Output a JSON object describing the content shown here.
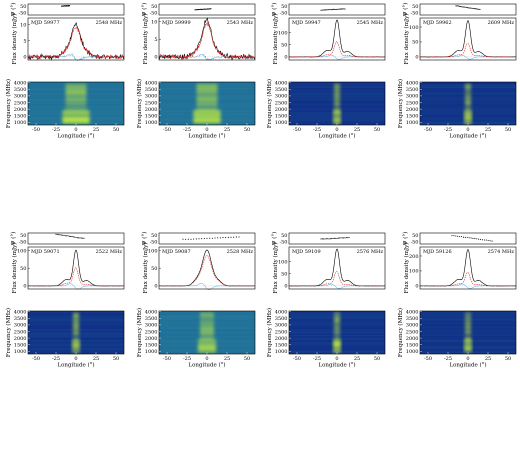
{
  "labels": {
    "pa_ylabel": "Ψ (°)",
    "flux_ylabel": "Flux density (mJy)",
    "freq_ylabel": "Frequency (MHz)",
    "xlabel": "Longitude (°)"
  },
  "colors": {
    "total_intensity": "#000000",
    "linear_pol": "#e0201b",
    "circular_pol": "#3aa0e6",
    "dynspec_bg_dark": "#0d2a86",
    "dynspec_bg_mid": "#1f6e98",
    "dynspec_signal": "#c8f03a"
  },
  "chart_data": [
    {
      "type": "line",
      "epoch": "MJD 59977",
      "freq": "2548 MHz",
      "pa_ticks": [
        50,
        -50
      ],
      "flux_ticks": [
        0,
        5,
        10
      ],
      "flux_max": 12,
      "peak": 10,
      "pl": 0.92,
      "pv": 0.12,
      "wide": 1,
      "noisy": true,
      "pa_x": [
        -18,
        -8
      ],
      "pa_y": [
        55,
        62
      ]
    },
    {
      "type": "line",
      "epoch": "MJD 59999",
      "freq": "2543 MHz",
      "pa_ticks": [
        50,
        -50
      ],
      "flux_ticks": [
        0,
        5,
        10
      ],
      "flux_max": 11,
      "peak": 10.2,
      "pl": 0.9,
      "pv": 0.1,
      "wide": 1,
      "noisy": true,
      "pa_x": [
        -15,
        5
      ],
      "pa_y": [
        -5,
        10
      ]
    },
    {
      "type": "line",
      "epoch": "MJD 59947",
      "freq": "2545 MHz",
      "pa_ticks": [
        50,
        -50
      ],
      "flux_ticks": [
        0,
        50,
        100
      ],
      "flux_max": 160,
      "peak": 150,
      "pl": 0.45,
      "pv": 0.08,
      "wide": 0,
      "noisy": false,
      "pa_x": [
        -20,
        10
      ],
      "pa_y": [
        -10,
        10
      ]
    },
    {
      "type": "line",
      "epoch": "MJD 59962",
      "freq": "2609 MHz",
      "pa_ticks": [
        50,
        -50
      ],
      "flux_ticks": [
        0,
        50,
        100
      ],
      "flux_max": 130,
      "peak": 120,
      "pl": 0.4,
      "pv": 0.07,
      "wide": 0,
      "noisy": false,
      "pa_x": [
        -15,
        15
      ],
      "pa_y": [
        60,
        0
      ]
    },
    {
      "type": "line",
      "epoch": "MJD 59071",
      "freq": "2522 MHz",
      "pa_ticks": [
        50,
        -50
      ],
      "flux_ticks": [
        0,
        50,
        100
      ],
      "flux_max": 110,
      "peak": 100,
      "pl": 0.55,
      "pv": 0.1,
      "wide": 0,
      "noisy": false,
      "pa_x": [
        -25,
        10
      ],
      "pa_y": [
        70,
        0
      ]
    },
    {
      "type": "line",
      "epoch": "MJD 59087",
      "freq": "2528 MHz",
      "pa_ticks": [
        50,
        -50
      ],
      "flux_ticks": [
        0,
        50,
        100
      ],
      "flux_max": 110,
      "peak": 100,
      "pl": 0.85,
      "pv": 0.12,
      "wide": 1,
      "noisy": false,
      "pa_x": [
        -30,
        40
      ],
      "pa_y": [
        -15,
        25
      ]
    },
    {
      "type": "line",
      "epoch": "MJD 59109",
      "freq": "2576 MHz",
      "pa_ticks": [
        50,
        -50
      ],
      "flux_ticks": [
        0,
        50,
        100
      ],
      "flux_max": 160,
      "peak": 150,
      "pl": 0.42,
      "pv": 0.08,
      "wide": 0,
      "noisy": false,
      "pa_x": [
        -20,
        15
      ],
      "pa_y": [
        -10,
        15
      ]
    },
    {
      "type": "line",
      "epoch": "MJD 59126",
      "freq": "2574 MHz",
      "pa_ticks": [
        50,
        -50
      ],
      "flux_ticks": [
        0,
        100,
        200
      ],
      "flux_max": 260,
      "peak": 240,
      "pl": 0.4,
      "pv": 0.08,
      "wide": 0,
      "noisy": false,
      "pa_x": [
        -20,
        30
      ],
      "pa_y": [
        50,
        -40
      ]
    }
  ],
  "axes": {
    "freq_ticks": [
      1000,
      1500,
      2000,
      2500,
      3000,
      3500,
      4000
    ],
    "freq_range": [
      800,
      4050
    ],
    "lon_ticks": [
      -50,
      -25,
      0,
      25,
      50
    ],
    "lon_range": [
      -60,
      60
    ],
    "pa_range": [
      -90,
      90
    ]
  }
}
